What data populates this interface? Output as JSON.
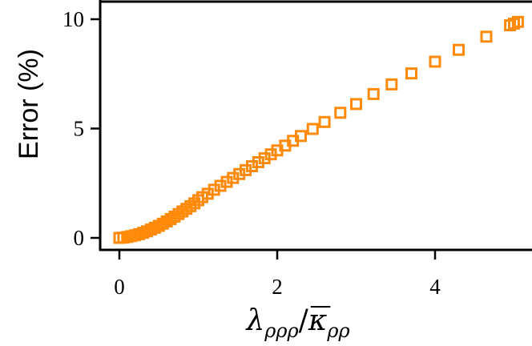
{
  "chart_data": {
    "type": "scatter",
    "title": "",
    "xlabel": {
      "symbol": "λ",
      "symbol_sub": "ρρρ",
      "divider": "/",
      "denominator": "κ",
      "denominator_sub": "ρρ"
    },
    "ylabel": "Error (%)",
    "xlim": [
      -0.1,
      5.15
    ],
    "ylim": [
      -0.55,
      10.5
    ],
    "xticks": [
      0,
      2,
      4
    ],
    "xtick_labels": [
      "0",
      "2",
      "4"
    ],
    "yticks": [
      0,
      5,
      10
    ],
    "ytick_labels": [
      "0",
      "5",
      "10"
    ],
    "grid": false,
    "marker": "open-square",
    "series": [
      {
        "name": "",
        "color": "#ff8a0a",
        "x": [
          0.0,
          0.05,
          0.1,
          0.15,
          0.2,
          0.25,
          0.3,
          0.35,
          0.4,
          0.45,
          0.5,
          0.55,
          0.6,
          0.65,
          0.7,
          0.75,
          0.8,
          0.85,
          0.9,
          0.95,
          1.0,
          1.05,
          1.12,
          1.2,
          1.28,
          1.36,
          1.44,
          1.52,
          1.6,
          1.68,
          1.76,
          1.84,
          1.92,
          2.0,
          2.1,
          2.2,
          2.3,
          2.45,
          2.6,
          2.8,
          3.0,
          3.22,
          3.45,
          3.7,
          4.0,
          4.3,
          4.65,
          4.95,
          5.0,
          5.05
        ],
        "y": [
          0.0,
          0.01,
          0.04,
          0.08,
          0.12,
          0.17,
          0.23,
          0.3,
          0.38,
          0.46,
          0.55,
          0.65,
          0.75,
          0.86,
          0.97,
          1.09,
          1.21,
          1.33,
          1.45,
          1.58,
          1.72,
          1.86,
          2.02,
          2.2,
          2.38,
          2.56,
          2.74,
          2.92,
          3.1,
          3.28,
          3.46,
          3.64,
          3.82,
          4.0,
          4.22,
          4.44,
          4.66,
          4.98,
          5.3,
          5.72,
          6.12,
          6.58,
          7.02,
          7.52,
          8.06,
          8.6,
          9.2,
          9.72,
          9.8,
          9.88
        ]
      }
    ]
  }
}
